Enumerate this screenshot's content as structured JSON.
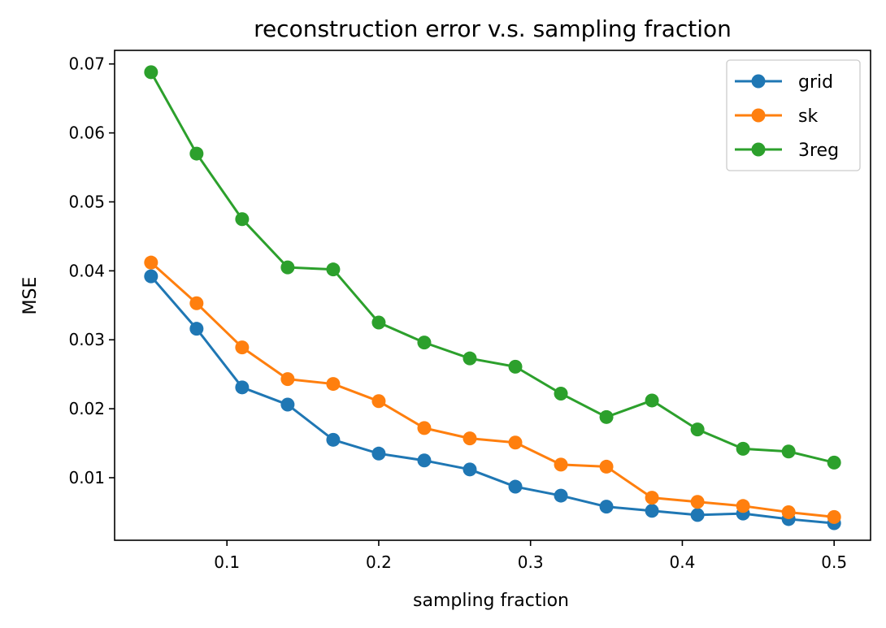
{
  "chart_data": {
    "type": "line",
    "title": "reconstruction error v.s. sampling fraction",
    "xlabel": "sampling fraction",
    "ylabel": "MSE",
    "xlim": [
      0.026,
      0.524
    ],
    "ylim": [
      0.00093,
      0.07197
    ],
    "x_ticks": [
      0.1,
      0.2,
      0.3,
      0.4,
      0.5
    ],
    "x_tick_labels": [
      "0.1",
      "0.2",
      "0.3",
      "0.4",
      "0.5"
    ],
    "y_ticks": [
      0.01,
      0.02,
      0.03,
      0.04,
      0.05,
      0.06,
      0.07
    ],
    "y_tick_labels": [
      "0.01",
      "0.02",
      "0.03",
      "0.04",
      "0.05",
      "0.06",
      "0.07"
    ],
    "grid": false,
    "legend_position": "top-right",
    "x": [
      0.05,
      0.08,
      0.11,
      0.14,
      0.17,
      0.2,
      0.23,
      0.26,
      0.29,
      0.32,
      0.35,
      0.38,
      0.41,
      0.44,
      0.47,
      0.5
    ],
    "series": [
      {
        "name": "grid",
        "color": "#1f77b4",
        "values": [
          0.0392,
          0.0316,
          0.0231,
          0.0206,
          0.0155,
          0.0135,
          0.0125,
          0.0112,
          0.0087,
          0.0074,
          0.0058,
          0.0052,
          0.0046,
          0.0048,
          0.004,
          0.0034
        ]
      },
      {
        "name": "sk",
        "color": "#ff7f0e",
        "values": [
          0.0412,
          0.0353,
          0.0289,
          0.0243,
          0.0236,
          0.0211,
          0.0172,
          0.0157,
          0.0151,
          0.0119,
          0.0116,
          0.0071,
          0.0065,
          0.0059,
          0.005,
          0.0043
        ]
      },
      {
        "name": "3reg",
        "color": "#2ca02c",
        "values": [
          0.0688,
          0.057,
          0.0475,
          0.0405,
          0.0402,
          0.0325,
          0.0296,
          0.0273,
          0.0261,
          0.0222,
          0.0188,
          0.0212,
          0.017,
          0.0142,
          0.0138,
          0.0122
        ]
      }
    ]
  }
}
